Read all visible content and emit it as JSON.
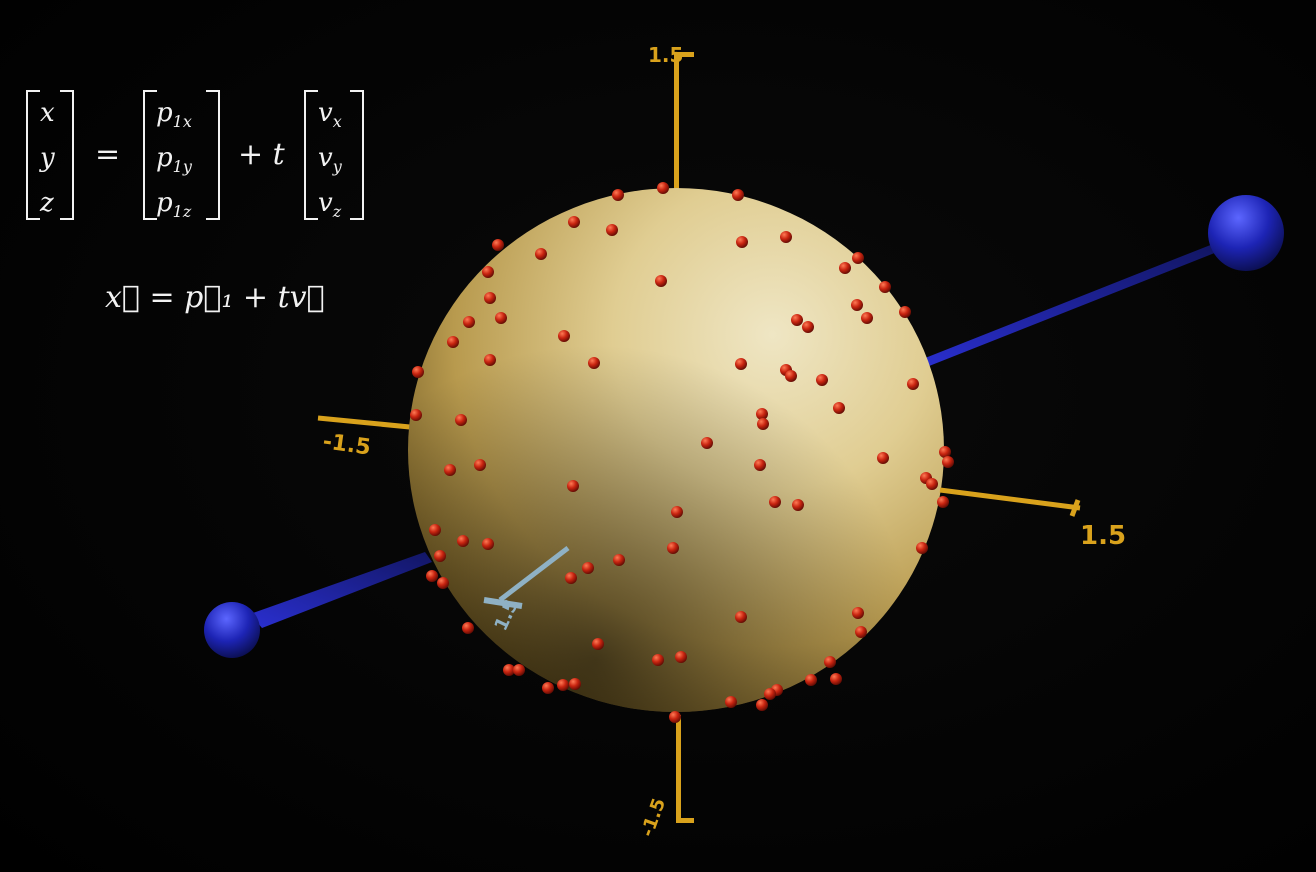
{
  "equation": {
    "lhs": [
      "x",
      "y",
      "z"
    ],
    "equals": "=",
    "p1": [
      {
        "base": "p",
        "sub": "1x"
      },
      {
        "base": "p",
        "sub": "1y"
      },
      {
        "base": "p",
        "sub": "1z"
      }
    ],
    "plus_t": "+ t",
    "v": [
      {
        "base": "v",
        "sub": "x"
      },
      {
        "base": "v",
        "sub": "y"
      },
      {
        "base": "v",
        "sub": "z"
      }
    ],
    "vector_form": "x⃗ = p⃗₁ + tv⃗"
  },
  "axes": {
    "top_label": "1.5",
    "bottom_label": "-1.5",
    "left_label": "-1.5",
    "right_label": "1.5",
    "front_label": "1.5"
  },
  "colors": {
    "sphere": "#d9c48a",
    "points": "#c0200e",
    "axes": "#d9a21c",
    "line": "#1a1f9a",
    "front_axis": "#8fb1c4"
  }
}
